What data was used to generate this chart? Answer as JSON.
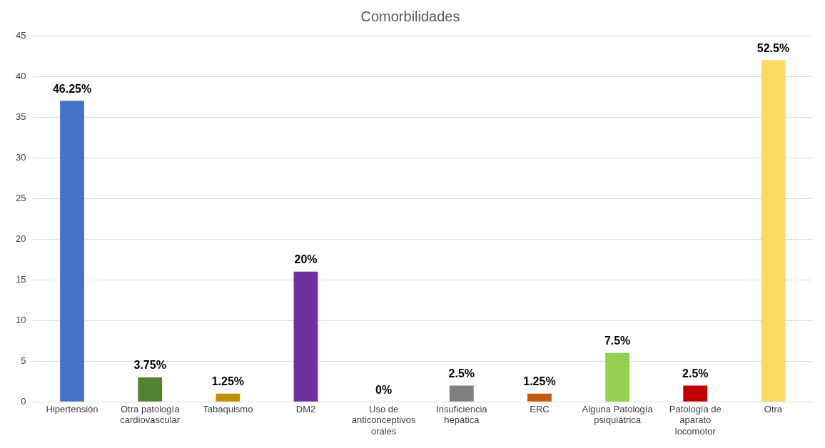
{
  "chart_data": {
    "type": "bar",
    "title": "Comorbilidades",
    "categories": [
      "Hipertensión",
      "Otra patología cardiovascular",
      "Tabaquismo",
      "DM2",
      "Uso de anticonceptivos orales",
      "Insuficiencia hepática",
      "ERC",
      "Alguna Patología psiquiátrica",
      "Patología de aparato locomotor",
      "Otra"
    ],
    "values": [
      37,
      3,
      1,
      16,
      0,
      2,
      1,
      6,
      2,
      42
    ],
    "colors": [
      "#4472c4",
      "#548235",
      "#bf9000",
      "#7030a0",
      "#ed7d31",
      "#7f7f7f",
      "#c55a11",
      "#92d050",
      "#c00000",
      "#ffd966"
    ],
    "annotations": [
      {
        "text": "46.25%",
        "x": "Hipertensión",
        "y": 37
      },
      {
        "text": "3.75%",
        "x": "Otra patología cardiovascular",
        "y": 3
      },
      {
        "text": "1.25%",
        "x": "Tabaquismo",
        "y": 1
      },
      {
        "text": "20%",
        "x": "DM2",
        "y": 16
      },
      {
        "text": "0%",
        "x": "Uso de anticonceptivos orales",
        "y": 0
      },
      {
        "text": "2.5%",
        "x": "Insuficiencia hepática",
        "y": 2
      },
      {
        "text": "1.25%",
        "x": "ERC",
        "y": 1
      },
      {
        "text": "7.5%",
        "x": "Alguna Patología psiquiátrica",
        "y": 6
      },
      {
        "text": "2.5%",
        "x": "Patología de aparato locomotor",
        "y": 2
      },
      {
        "text": "52.5%",
        "x": "Otra",
        "y": 42
      }
    ],
    "ylim": [
      0,
      45
    ],
    "yticks": [
      0,
      5,
      10,
      15,
      20,
      25,
      30,
      35,
      40,
      45
    ],
    "grid": "y",
    "legend": false
  }
}
